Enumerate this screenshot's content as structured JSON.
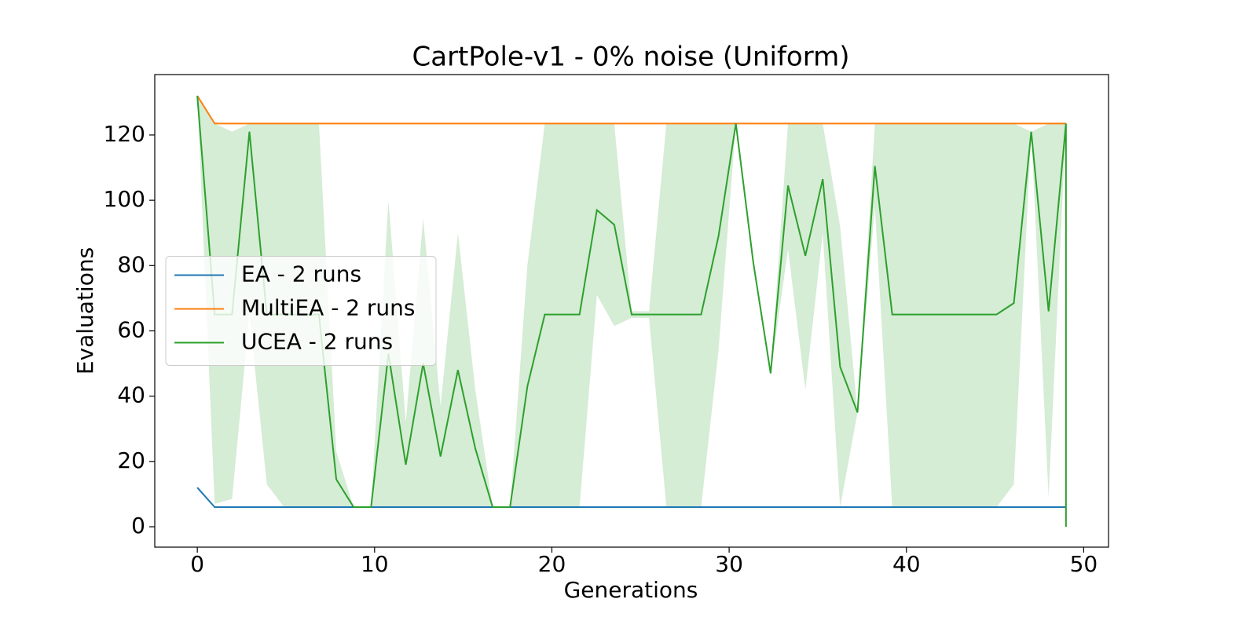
{
  "chart_data": {
    "type": "line",
    "title": "CartPole-v1 - 0% noise (Uniform)",
    "x_label": "Generations",
    "y_label": "Evaluations",
    "x": [
      0,
      0.98,
      1.96,
      2.94,
      3.92,
      4.9,
      5.88,
      6.86,
      7.84,
      8.82,
      9.8,
      10.78,
      11.76,
      12.74,
      13.72,
      14.7,
      15.68,
      16.66,
      17.64,
      18.62,
      19.6,
      20.58,
      21.56,
      22.54,
      23.52,
      24.5,
      25.48,
      26.46,
      27.44,
      28.42,
      29.4,
      30.38,
      31.36,
      32.34,
      33.32,
      34.3,
      35.28,
      36.26,
      37.24,
      38.22,
      39.2,
      40.18,
      41.16,
      42.14,
      43.12,
      44.1,
      45.08,
      46.06,
      47.04,
      48.02,
      49,
      49
    ],
    "series": [
      {
        "name": "EA - 2 runs",
        "color": "#1f77b4",
        "values": [
          12,
          6,
          6,
          6,
          6,
          6,
          6,
          6,
          6,
          6,
          6,
          6,
          6,
          6,
          6,
          6,
          6,
          6,
          6,
          6,
          6,
          6,
          6,
          6,
          6,
          6,
          6,
          6,
          6,
          6,
          6,
          6,
          6,
          6,
          6,
          6,
          6,
          6,
          6,
          6,
          6,
          6,
          6,
          6,
          6,
          6,
          6,
          6,
          6,
          6,
          6,
          6
        ]
      },
      {
        "name": "MultiEA - 2 runs",
        "color": "#ff7f0e",
        "values": [
          132,
          123.5,
          123.5,
          123.5,
          123.5,
          123.5,
          123.5,
          123.5,
          123.5,
          123.5,
          123.5,
          123.5,
          123.5,
          123.5,
          123.5,
          123.5,
          123.5,
          123.5,
          123.5,
          123.5,
          123.5,
          123.5,
          123.5,
          123.5,
          123.5,
          123.5,
          123.5,
          123.5,
          123.5,
          123.5,
          123.5,
          123.5,
          123.5,
          123.5,
          123.5,
          123.5,
          123.5,
          123.5,
          123.5,
          123.5,
          123.5,
          123.5,
          123.5,
          123.5,
          123.5,
          123.5,
          123.5,
          123.5,
          123.5,
          123.5,
          123.5,
          123.5
        ]
      },
      {
        "name": "UCEA - 2 runs",
        "color": "#2ca02c",
        "values": [
          132,
          65,
          65,
          121,
          65,
          65,
          65,
          65,
          14.5,
          6,
          6,
          53,
          19,
          50,
          21.5,
          48,
          24,
          6,
          6,
          43,
          65,
          65,
          65,
          97,
          92.5,
          65,
          65,
          65,
          65,
          65,
          89,
          123.5,
          81,
          47,
          104.5,
          83,
          106.5,
          49,
          35,
          110.5,
          65,
          65,
          65,
          65,
          65,
          65,
          65,
          68.5,
          121,
          66,
          123.5,
          0
        ],
        "lower": [
          132,
          7,
          8.5,
          65,
          13,
          6,
          6,
          6,
          6,
          6,
          6,
          6,
          6,
          6,
          6,
          6,
          6,
          6,
          6,
          6,
          6,
          6,
          6,
          71,
          61.5,
          64,
          64,
          6,
          6,
          6,
          54,
          123.5,
          81,
          47,
          85,
          42,
          90,
          6,
          35,
          98,
          6,
          6,
          6,
          6,
          6,
          6,
          6,
          13,
          121,
          9,
          123.5,
          0
        ],
        "upper": [
          132,
          123.5,
          121,
          123.5,
          123.5,
          123.5,
          123.5,
          123.5,
          23,
          6,
          6,
          100,
          32,
          94.5,
          37,
          90,
          42,
          6,
          6,
          80,
          123.5,
          123.5,
          123.5,
          123.5,
          123.5,
          66,
          66,
          123.5,
          123.5,
          123.5,
          123.5,
          123.5,
          81,
          47,
          123.5,
          123.5,
          123.5,
          92,
          35,
          123.5,
          123.5,
          123.5,
          123.5,
          123.5,
          123.5,
          123.5,
          123.5,
          123.5,
          121,
          123.5,
          123.5,
          0
        ],
        "band_opacity": 0.2
      }
    ],
    "xlim": [
      -2.4,
      51.4
    ],
    "ylim": [
      -6.25,
      138.5
    ],
    "xticks": [
      0,
      10,
      20,
      30,
      40,
      50
    ],
    "yticks": [
      0,
      20,
      40,
      60,
      80,
      100,
      120
    ],
    "legend": "center left"
  }
}
